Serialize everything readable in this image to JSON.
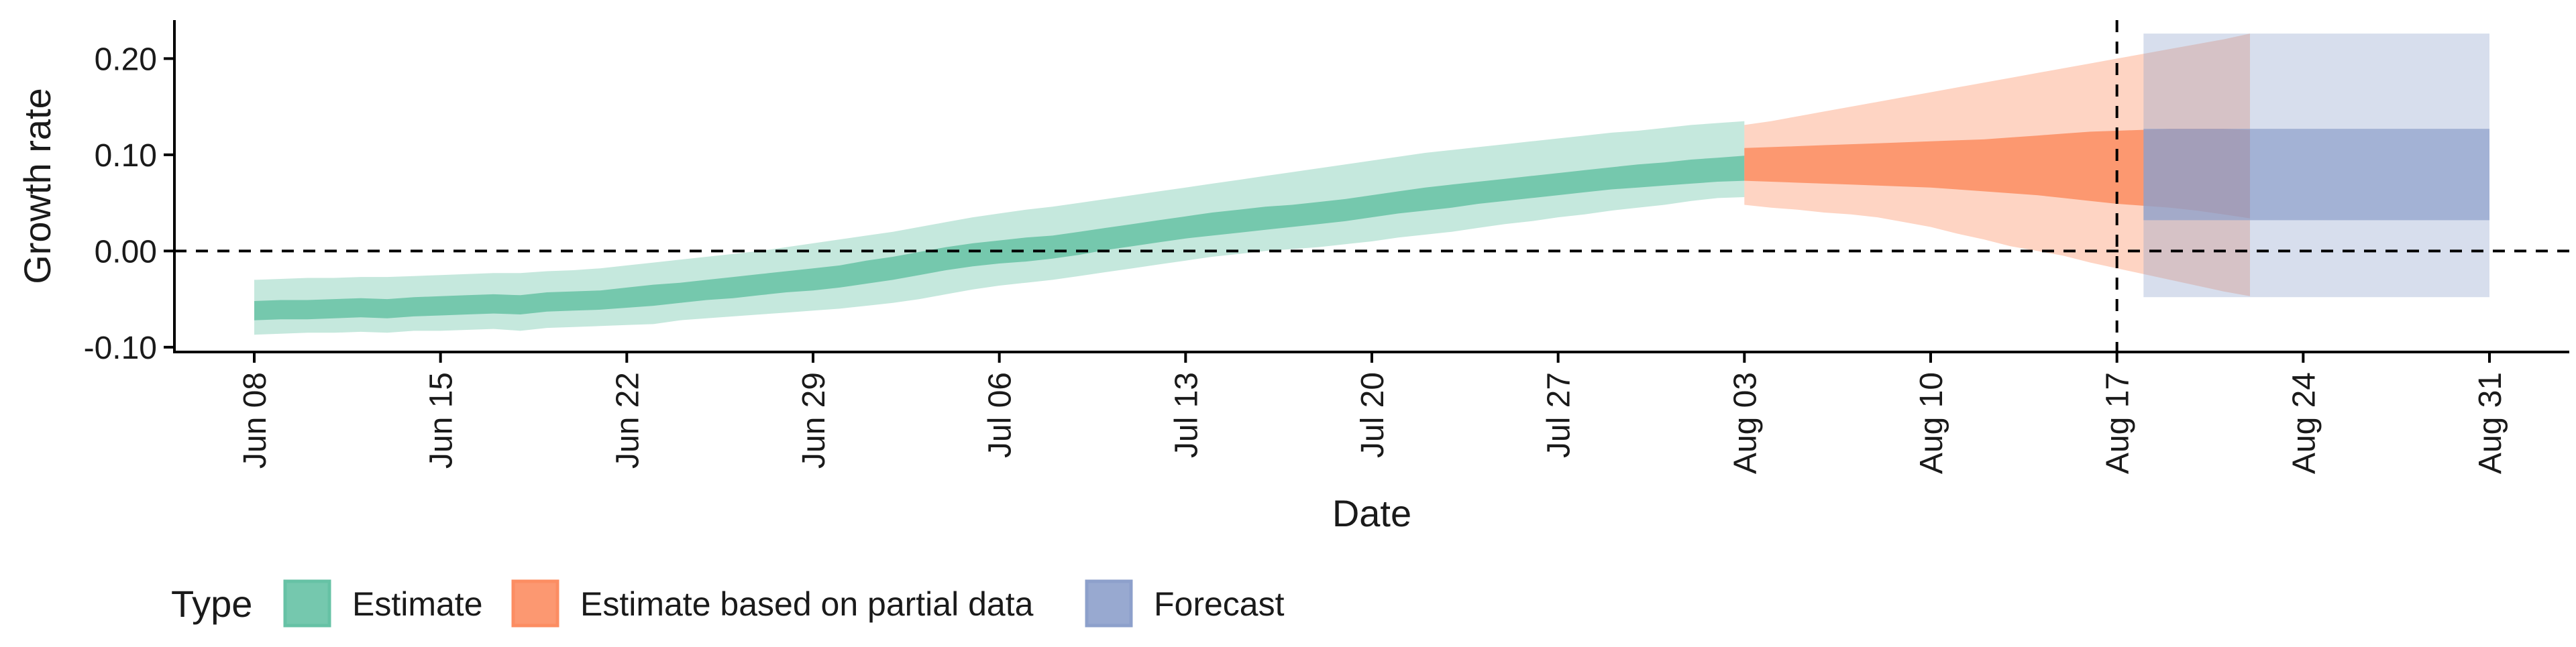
{
  "chart_data": {
    "type": "area",
    "xlabel": "Date",
    "ylabel": "Growth rate",
    "xlim": [
      "2020-06-05",
      "2020-09-03"
    ],
    "ylim": [
      -0.105,
      0.24
    ],
    "x_ticks": [
      "Jun 08",
      "Jun 15",
      "Jun 22",
      "Jun 29",
      "Jul 06",
      "Jul 13",
      "Jul 20",
      "Jul 27",
      "Aug 03",
      "Aug 10",
      "Aug 17",
      "Aug 24",
      "Aug 31"
    ],
    "x_tick_dates": [
      "2020-06-08",
      "2020-06-15",
      "2020-06-22",
      "2020-06-29",
      "2020-07-06",
      "2020-07-13",
      "2020-07-20",
      "2020-07-27",
      "2020-08-03",
      "2020-08-10",
      "2020-08-17",
      "2020-08-24",
      "2020-08-31"
    ],
    "y_ticks": [
      -0.1,
      0.0,
      0.1,
      0.2
    ],
    "y_tick_labels": [
      "-0.10",
      "0.00",
      "0.10",
      "0.20"
    ],
    "hlines": [
      0.0
    ],
    "vlines": [
      "2020-08-17"
    ],
    "grid": false,
    "legend": {
      "title": "Type",
      "position": "bottom",
      "entries": [
        "Estimate",
        "Estimate based on partial data",
        "Forecast"
      ]
    },
    "series": [
      {
        "name": "Estimate",
        "color": "#66c2a5",
        "start": "2020-06-08",
        "outer_lower": [
          -0.087,
          -0.086,
          -0.085,
          -0.085,
          -0.084,
          -0.085,
          -0.083,
          -0.083,
          -0.082,
          -0.081,
          -0.083,
          -0.08,
          -0.079,
          -0.078,
          -0.077,
          -0.076,
          -0.072,
          -0.07,
          -0.068,
          -0.066,
          -0.064,
          -0.062,
          -0.06,
          -0.057,
          -0.054,
          -0.05,
          -0.045,
          -0.04,
          -0.036,
          -0.033,
          -0.03,
          -0.026,
          -0.022,
          -0.018,
          -0.014,
          -0.01,
          -0.006,
          -0.003,
          0.0,
          0.002,
          0.004,
          0.007,
          0.01,
          0.014,
          0.017,
          0.02,
          0.024,
          0.028,
          0.031,
          0.035,
          0.038,
          0.042,
          0.045,
          0.048,
          0.052,
          0.055,
          0.056
        ],
        "inner_lower": [
          -0.072,
          -0.071,
          -0.071,
          -0.07,
          -0.069,
          -0.07,
          -0.068,
          -0.067,
          -0.066,
          -0.065,
          -0.066,
          -0.063,
          -0.062,
          -0.061,
          -0.059,
          -0.057,
          -0.054,
          -0.051,
          -0.049,
          -0.046,
          -0.043,
          -0.041,
          -0.038,
          -0.034,
          -0.03,
          -0.025,
          -0.02,
          -0.016,
          -0.013,
          -0.011,
          -0.008,
          -0.004,
          0.001,
          0.005,
          0.009,
          0.013,
          0.016,
          0.019,
          0.022,
          0.025,
          0.028,
          0.031,
          0.035,
          0.039,
          0.042,
          0.045,
          0.049,
          0.052,
          0.055,
          0.058,
          0.061,
          0.064,
          0.066,
          0.068,
          0.07,
          0.072,
          0.073
        ],
        "inner_upper": [
          -0.052,
          -0.051,
          -0.051,
          -0.05,
          -0.049,
          -0.05,
          -0.048,
          -0.047,
          -0.046,
          -0.045,
          -0.046,
          -0.043,
          -0.042,
          -0.041,
          -0.038,
          -0.035,
          -0.033,
          -0.03,
          -0.027,
          -0.024,
          -0.021,
          -0.018,
          -0.015,
          -0.01,
          -0.006,
          -0.001,
          0.004,
          0.008,
          0.011,
          0.014,
          0.016,
          0.02,
          0.024,
          0.028,
          0.032,
          0.036,
          0.04,
          0.043,
          0.046,
          0.048,
          0.051,
          0.054,
          0.058,
          0.062,
          0.066,
          0.069,
          0.072,
          0.075,
          0.078,
          0.081,
          0.084,
          0.087,
          0.09,
          0.092,
          0.095,
          0.097,
          0.099
        ],
        "outer_upper": [
          -0.03,
          -0.029,
          -0.028,
          -0.028,
          -0.027,
          -0.027,
          -0.026,
          -0.025,
          -0.024,
          -0.023,
          -0.023,
          -0.021,
          -0.02,
          -0.018,
          -0.015,
          -0.012,
          -0.009,
          -0.006,
          -0.003,
          0.0,
          0.004,
          0.008,
          0.012,
          0.016,
          0.02,
          0.025,
          0.03,
          0.035,
          0.039,
          0.043,
          0.046,
          0.05,
          0.054,
          0.058,
          0.062,
          0.066,
          0.07,
          0.074,
          0.078,
          0.082,
          0.086,
          0.09,
          0.094,
          0.098,
          0.102,
          0.105,
          0.108,
          0.111,
          0.114,
          0.117,
          0.12,
          0.123,
          0.125,
          0.128,
          0.131,
          0.133,
          0.135
        ]
      },
      {
        "name": "Estimate based on partial data",
        "color": "#fc8d62",
        "start": "2020-08-03",
        "outer_lower": [
          0.048,
          0.045,
          0.043,
          0.04,
          0.038,
          0.035,
          0.03,
          0.025,
          0.018,
          0.012,
          0.005,
          0.0,
          -0.005,
          -0.012,
          -0.018,
          -0.024,
          -0.03,
          -0.036,
          -0.042,
          -0.047
        ],
        "inner_lower": [
          0.073,
          0.072,
          0.071,
          0.07,
          0.069,
          0.068,
          0.067,
          0.066,
          0.064,
          0.062,
          0.06,
          0.058,
          0.055,
          0.052,
          0.049,
          0.047,
          0.045,
          0.042,
          0.038,
          0.034
        ],
        "inner_upper": [
          0.107,
          0.108,
          0.109,
          0.11,
          0.111,
          0.112,
          0.113,
          0.114,
          0.115,
          0.116,
          0.118,
          0.12,
          0.122,
          0.124,
          0.125,
          0.126,
          0.127,
          0.127,
          0.127,
          0.126
        ],
        "outer_upper": [
          0.131,
          0.135,
          0.14,
          0.145,
          0.15,
          0.155,
          0.16,
          0.165,
          0.17,
          0.175,
          0.18,
          0.185,
          0.19,
          0.195,
          0.2,
          0.205,
          0.21,
          0.215,
          0.22,
          0.226
        ]
      },
      {
        "name": "Forecast",
        "color": "#8da0cb",
        "start": "2020-08-18",
        "end": "2020-08-31",
        "outer_lower": -0.048,
        "inner_lower": 0.032,
        "inner_upper": 0.127,
        "outer_upper": 0.226
      }
    ]
  }
}
